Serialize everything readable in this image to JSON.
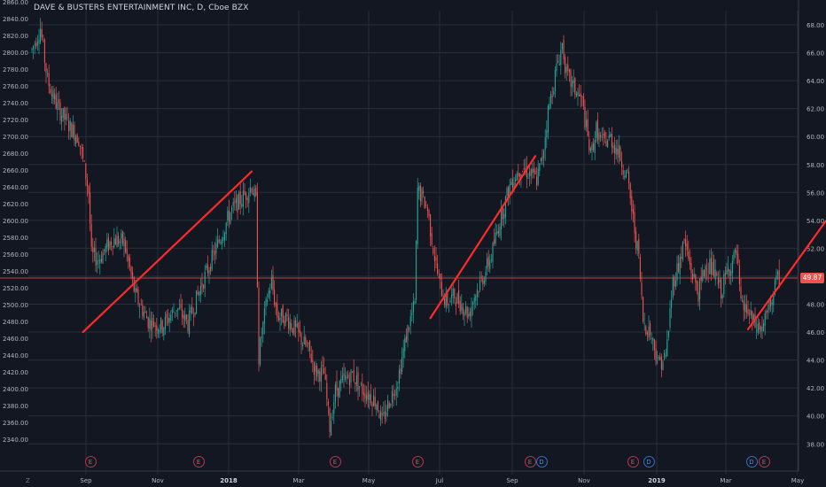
{
  "header": {
    "title": "DAVE & BUSTERS ENTERTAINMENT INC, D, Cboe BZX"
  },
  "badge": {
    "last_price": "49.87"
  },
  "axis_footer": {
    "timezone_label": "Z"
  },
  "colors": {
    "background": "#131722",
    "up": "#26a69a",
    "down": "#ef5350",
    "trendline": "#ff2a2a",
    "grid": "#2a2e39",
    "price_line": "#ef5350"
  },
  "chart_data": {
    "type": "candlestick",
    "title": "DAVE & BUSTERS ENTERTAINMENT INC, D, Cboe BZX",
    "left_axis": {
      "ticks": [
        "2860.00",
        "2840.00",
        "2820.00",
        "2800.00",
        "2780.00",
        "2760.00",
        "2740.00",
        "2720.00",
        "2700.00",
        "2680.00",
        "2660.00",
        "2640.00",
        "2620.00",
        "2600.00",
        "2580.00",
        "2560.00",
        "2540.00",
        "2520.00",
        "2500.00",
        "2480.00",
        "2460.00",
        "2440.00",
        "2420.00",
        "2400.00",
        "2380.00",
        "2360.00",
        "2340.00"
      ]
    },
    "right_axis": {
      "ticks": [
        "68.00",
        "66.00",
        "64.00",
        "62.00",
        "60.00",
        "58.00",
        "56.00",
        "54.00",
        "52.00",
        "50.00",
        "48.00",
        "46.00",
        "44.00",
        "42.00",
        "40.00",
        "38.00"
      ],
      "range": [
        37.5,
        69.0
      ]
    },
    "x_axis": {
      "ticks": [
        {
          "label": "Sep",
          "bold": false
        },
        {
          "label": "Nov",
          "bold": false
        },
        {
          "label": "2018",
          "bold": true
        },
        {
          "label": "Mar",
          "bold": false
        },
        {
          "label": "May",
          "bold": false
        },
        {
          "label": "Jul",
          "bold": false
        },
        {
          "label": "Sep",
          "bold": false
        },
        {
          "label": "Nov",
          "bold": false
        },
        {
          "label": "2019",
          "bold": true
        },
        {
          "label": "Mar",
          "bold": false
        },
        {
          "label": "May",
          "bold": false
        }
      ]
    },
    "last_price": 49.87,
    "price_path": [
      [
        0,
        66.2
      ],
      [
        6,
        67.8
      ],
      [
        11,
        64.0
      ],
      [
        18,
        62.1
      ],
      [
        26,
        60.8
      ],
      [
        33,
        59.9
      ],
      [
        38,
        57.2
      ],
      [
        40,
        56.0
      ],
      [
        42,
        51.5
      ],
      [
        47,
        51.2
      ],
      [
        57,
        52.7
      ],
      [
        65,
        52.4
      ],
      [
        73,
        48.6
      ],
      [
        82,
        46.8
      ],
      [
        92,
        46.4
      ],
      [
        102,
        47.8
      ],
      [
        110,
        46.6
      ],
      [
        120,
        49.5
      ],
      [
        130,
        52.0
      ],
      [
        140,
        54.6
      ],
      [
        150,
        55.8
      ],
      [
        155,
        56.5
      ],
      [
        158,
        55.3
      ],
      [
        160,
        44.2
      ],
      [
        162,
        45.8
      ],
      [
        166,
        48.5
      ],
      [
        169,
        49.6
      ],
      [
        173,
        47.2
      ],
      [
        180,
        47.0
      ],
      [
        188,
        45.8
      ],
      [
        196,
        44.5
      ],
      [
        200,
        43.2
      ],
      [
        206,
        43.0
      ],
      [
        210,
        39.2
      ],
      [
        214,
        41.8
      ],
      [
        219,
        42.4
      ],
      [
        226,
        43.0
      ],
      [
        232,
        42.0
      ],
      [
        238,
        41.5
      ],
      [
        243,
        41.0
      ],
      [
        247,
        39.5
      ],
      [
        251,
        40.8
      ],
      [
        258,
        42.6
      ],
      [
        265,
        46.2
      ],
      [
        270,
        48.0
      ],
      [
        272,
        56.2
      ],
      [
        275,
        55.7
      ],
      [
        279,
        54.8
      ],
      [
        283,
        52.0
      ],
      [
        287,
        49.6
      ],
      [
        292,
        48.1
      ],
      [
        298,
        48.6
      ],
      [
        303,
        48.0
      ],
      [
        308,
        47.3
      ],
      [
        312,
        48.6
      ],
      [
        318,
        49.9
      ],
      [
        324,
        51.5
      ],
      [
        330,
        54.0
      ],
      [
        338,
        56.8
      ],
      [
        345,
        57.8
      ],
      [
        352,
        57.3
      ],
      [
        356,
        56.9
      ],
      [
        360,
        58.5
      ],
      [
        364,
        61.8
      ],
      [
        370,
        64.9
      ],
      [
        374,
        66.6
      ],
      [
        377,
        64.4
      ],
      [
        382,
        63.5
      ],
      [
        388,
        62.5
      ],
      [
        394,
        58.6
      ],
      [
        398,
        60.5
      ],
      [
        402,
        59.5
      ],
      [
        408,
        59.9
      ],
      [
        414,
        58.8
      ],
      [
        420,
        57.0
      ],
      [
        425,
        53.3
      ],
      [
        428,
        51.3
      ],
      [
        431,
        46.8
      ],
      [
        436,
        46.0
      ],
      [
        442,
        43.8
      ],
      [
        447,
        44.2
      ],
      [
        452,
        49.6
      ],
      [
        456,
        50.8
      ],
      [
        460,
        52.5
      ],
      [
        465,
        50.4
      ],
      [
        470,
        48.8
      ],
      [
        476,
        51.1
      ],
      [
        481,
        50.2
      ],
      [
        486,
        48.9
      ],
      [
        491,
        50.5
      ],
      [
        497,
        51.6
      ],
      [
        500,
        47.8
      ],
      [
        504,
        47.6
      ],
      [
        510,
        46.4
      ],
      [
        515,
        46.2
      ],
      [
        520,
        47.7
      ],
      [
        524,
        49.3
      ],
      [
        527,
        49.9
      ]
    ],
    "trendlines": [
      {
        "x": [
          36,
          155
        ],
        "y": [
          46.0,
          57.5
        ]
      },
      {
        "x": [
          281,
          355
        ],
        "y": [
          47.0,
          58.6
        ]
      },
      {
        "x": [
          505,
          568
        ],
        "y": [
          46.2,
          55.1
        ]
      }
    ],
    "events": [
      {
        "type": "E",
        "label": "E"
      },
      {
        "type": "E",
        "label": "E"
      },
      {
        "type": "E",
        "label": "E"
      },
      {
        "type": "E",
        "label": "E"
      },
      {
        "type": "E",
        "label": "E"
      },
      {
        "type": "D",
        "label": "D"
      },
      {
        "type": "E",
        "label": "E"
      },
      {
        "type": "D",
        "label": "D"
      },
      {
        "type": "D",
        "label": "D"
      },
      {
        "type": "E",
        "label": "E"
      }
    ],
    "grid": true
  }
}
